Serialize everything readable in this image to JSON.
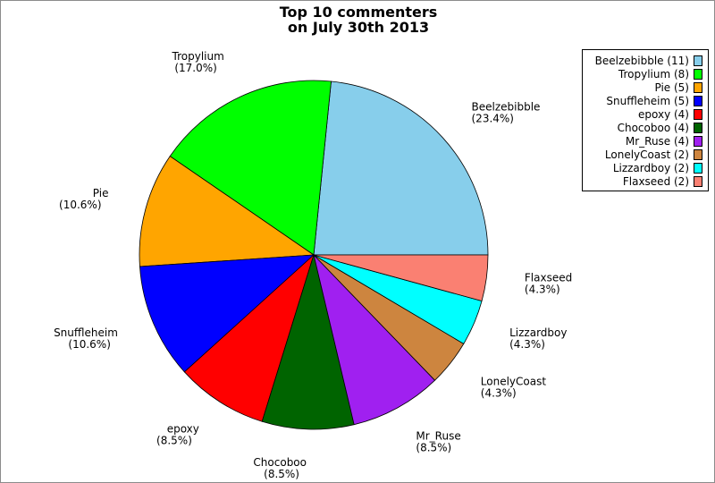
{
  "chart_data": {
    "type": "pie",
    "title": [
      "Top 10 commenters",
      "on July 30th 2013"
    ],
    "slices": [
      {
        "name": "Beelzebibble",
        "value": 11,
        "percent_label": "(23.4%)",
        "legend": "Beelzebibble (11)",
        "color": "#87CEEB"
      },
      {
        "name": "Tropylium",
        "value": 8,
        "percent_label": "(17.0%)",
        "legend": "Tropylium (8)",
        "color": "#00FF00"
      },
      {
        "name": "Pie",
        "value": 5,
        "percent_label": "(10.6%)",
        "legend": "Pie (5)",
        "color": "#FFA500"
      },
      {
        "name": "Snuffleheim",
        "value": 5,
        "percent_label": "(10.6%)",
        "legend": "Snuffleheim (5)",
        "color": "#0000FF"
      },
      {
        "name": "epoxy",
        "value": 4,
        "percent_label": "(8.5%)",
        "legend": "epoxy (4)",
        "color": "#FF0000"
      },
      {
        "name": "Chocoboo",
        "value": 4,
        "percent_label": "(8.5%)",
        "legend": "Chocoboo (4)",
        "color": "#006400"
      },
      {
        "name": "Mr_Ruse",
        "value": 4,
        "percent_label": "(8.5%)",
        "legend": "Mr_Ruse (4)",
        "color": "#A020F0"
      },
      {
        "name": "LonelyCoast",
        "value": 2,
        "percent_label": "(4.3%)",
        "legend": "LonelyCoast (2)",
        "color": "#CD853F"
      },
      {
        "name": "Lizzardboy",
        "value": 2,
        "percent_label": "(4.3%)",
        "legend": "Lizzardboy (2)",
        "color": "#00FFFF"
      },
      {
        "name": "Flaxseed",
        "value": 2,
        "percent_label": "(4.3%)",
        "legend": "Flaxseed (2)",
        "color": "#FA8072"
      }
    ],
    "start_direction": "east",
    "direction": "counterclockwise",
    "legend_position": "top-right"
  }
}
